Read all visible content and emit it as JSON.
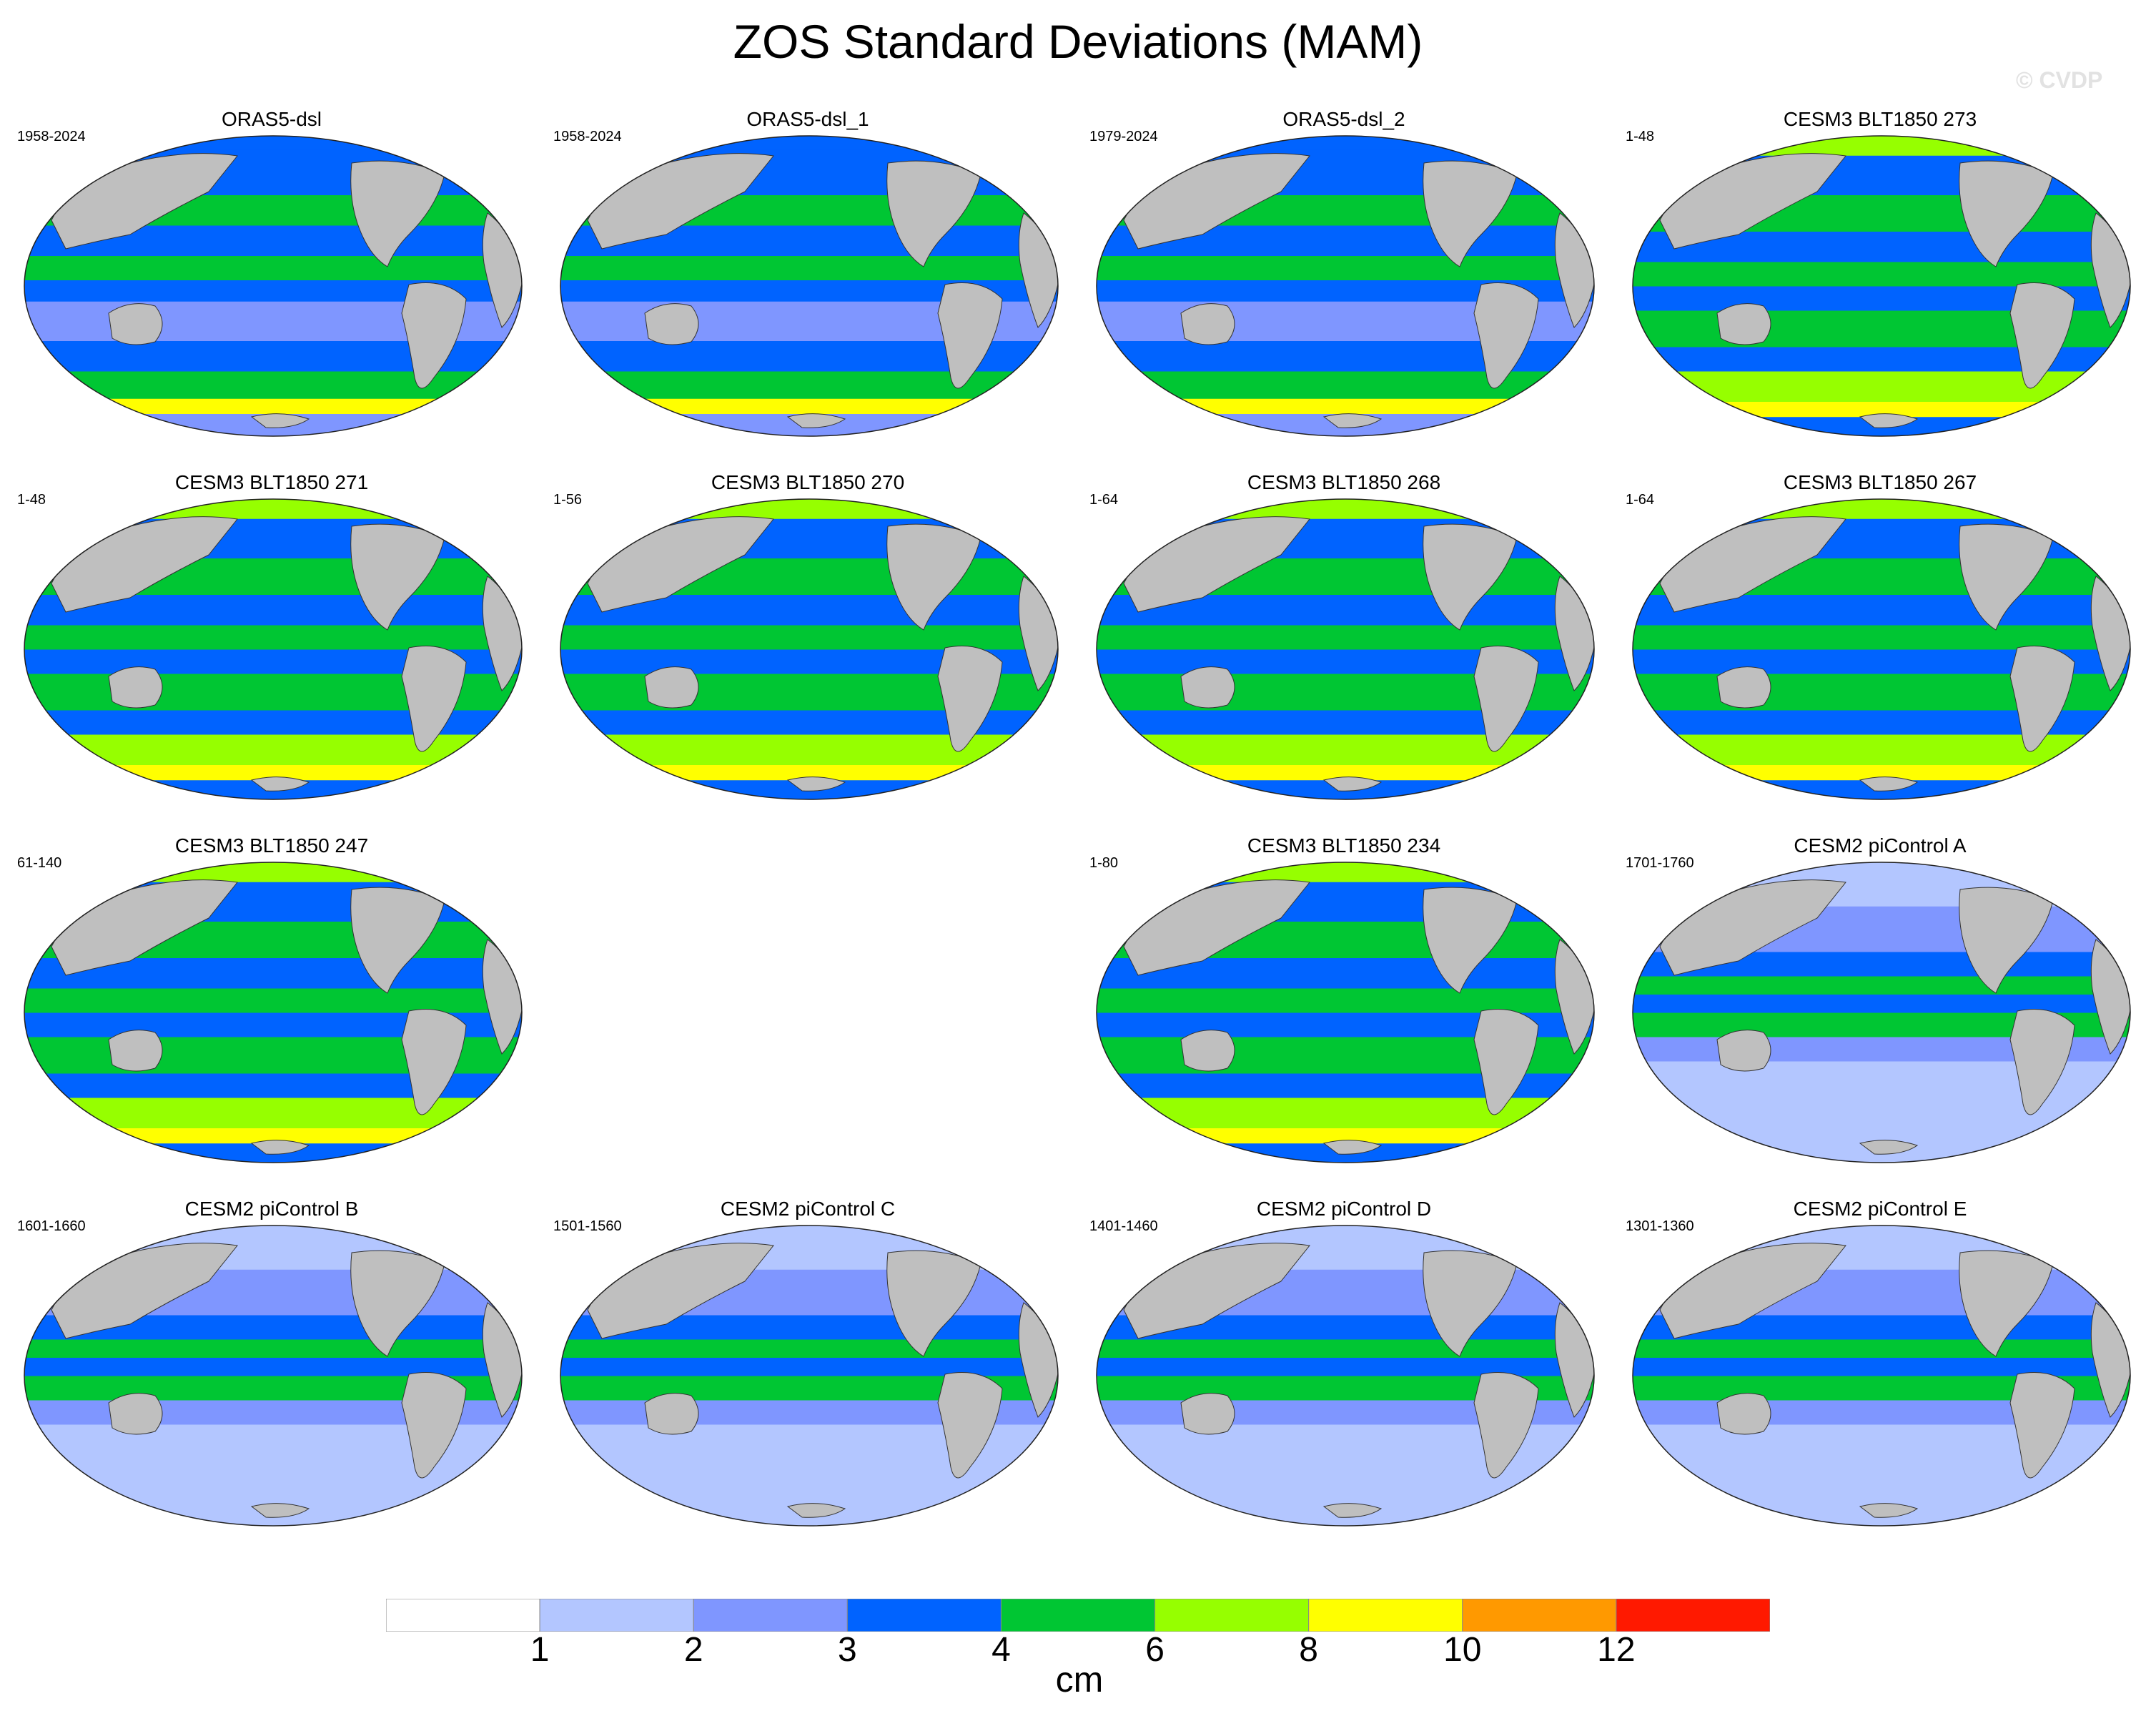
{
  "title": "ZOS Standard Deviations (MAM)",
  "watermark": "© CVDP",
  "panels": [
    {
      "name": "ORAS5-dsl",
      "years": "1958-2024",
      "style": "obs"
    },
    {
      "name": "ORAS5-dsl_1",
      "years": "1958-2024",
      "style": "obs"
    },
    {
      "name": "ORAS5-dsl_2",
      "years": "1979-2024",
      "style": "obs"
    },
    {
      "name": "CESM3 BLT1850 273",
      "years": "1-48",
      "style": "cesm3"
    },
    {
      "name": "CESM3 BLT1850 271",
      "years": "1-48",
      "style": "cesm3"
    },
    {
      "name": "CESM3 BLT1850 270",
      "years": "1-56",
      "style": "cesm3"
    },
    {
      "name": "CESM3 BLT1850 268",
      "years": "1-64",
      "style": "cesm3"
    },
    {
      "name": "CESM3 BLT1850 267",
      "years": "1-64",
      "style": "cesm3"
    },
    {
      "name": "CESM3 BLT1850 247",
      "years": "61-140",
      "style": "cesm3"
    },
    null,
    {
      "name": "CESM3 BLT1850 234",
      "years": "1-80",
      "style": "cesm3"
    },
    {
      "name": "CESM2 piControl A",
      "years": "1701-1760",
      "style": "cesm2"
    },
    {
      "name": "CESM2 piControl B",
      "years": "1601-1660",
      "style": "cesm2"
    },
    {
      "name": "CESM2 piControl C",
      "years": "1501-1560",
      "style": "cesm2"
    },
    {
      "name": "CESM2 piControl D",
      "years": "1401-1460",
      "style": "cesm2"
    },
    {
      "name": "CESM2 piControl E",
      "years": "1301-1360",
      "style": "cesm2"
    }
  ],
  "colorbar": {
    "colors": [
      "#ffffff",
      "#b3c6ff",
      "#7f96ff",
      "#0063ff",
      "#00c633",
      "#96ff00",
      "#ffff00",
      "#ff9900",
      "#ff1900"
    ],
    "labels": [
      "1",
      "2",
      "3",
      "4",
      "6",
      "8",
      "10",
      "12"
    ],
    "units": "cm"
  }
}
